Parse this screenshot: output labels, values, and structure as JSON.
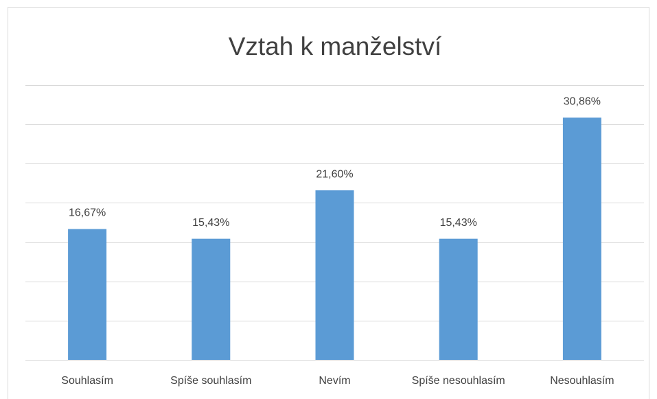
{
  "chart_data": {
    "type": "bar",
    "title": "Vztah k manželství",
    "categories": [
      "Souhlasím",
      "Spíše souhlasím",
      "Nevím",
      "Spíše nesouhlasím",
      "Nesouhlasím"
    ],
    "values": [
      16.67,
      15.43,
      21.6,
      15.43,
      30.86
    ],
    "value_labels": [
      "16,67%",
      "15,43%",
      "21,60%",
      "15,43%",
      "30,86%"
    ],
    "color": "#5b9bd5",
    "ylim": [
      0,
      35
    ],
    "yticks": [
      0,
      5,
      10,
      15,
      20,
      25,
      30,
      35
    ],
    "grid": true
  }
}
